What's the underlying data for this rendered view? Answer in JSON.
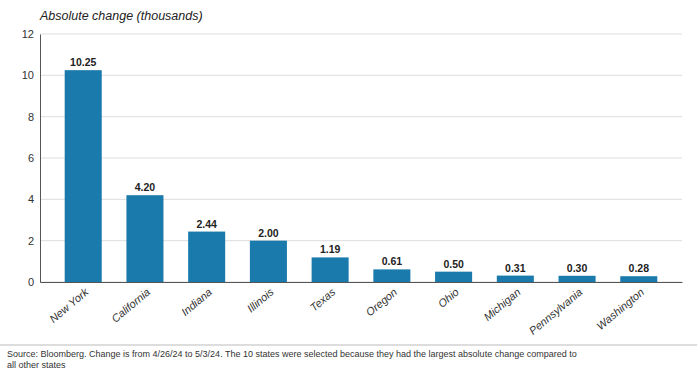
{
  "chart_data": {
    "type": "bar",
    "ylabel": "Absolute change (thousands)",
    "annotations": [
      "Source: Bloomberg. Change is from 4/26/24 to 5/3/24. The 10 states were selected because they had the largest absolute change compared to\nall other states"
    ],
    "categories": [
      "New York",
      "California",
      "Indiana",
      "Illinois",
      "Texas",
      "Oregon",
      "Ohio",
      "Michigan",
      "Pennsylvania",
      "Washington"
    ],
    "values": [
      10.25,
      4.2,
      2.44,
      2.0,
      1.19,
      0.61,
      0.5,
      0.31,
      0.3,
      0.28
    ],
    "value_labels": [
      "10.25",
      "4.20",
      "2.44",
      "2.00",
      "1.19",
      "0.61",
      "0.50",
      "0.31",
      "0.30",
      "0.28"
    ],
    "data_labels": true,
    "color": "#1a7aab",
    "ylim": [
      0,
      12
    ],
    "yticks": [
      0,
      2,
      4,
      6,
      8,
      10,
      12
    ],
    "grid": true
  }
}
